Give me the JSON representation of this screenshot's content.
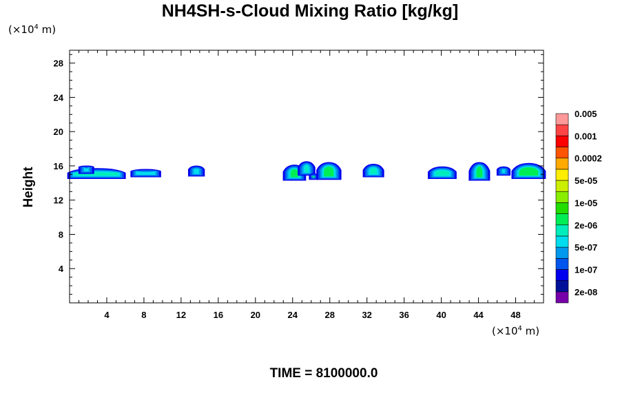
{
  "chart_data": {
    "type": "heatmap",
    "title": "NH4SH-s-Cloud Mixing Ratio [kg/kg]",
    "ylabel": "Height",
    "y_unit": {
      "prefix": "(×10",
      "exp": "4",
      "suffix": " m)"
    },
    "x_unit": {
      "prefix": "(×10",
      "exp": "4",
      "suffix": " m)"
    },
    "footer": "TIME = 8100000.0",
    "xlim": [
      0,
      51
    ],
    "ylim": [
      0,
      29.5
    ],
    "x_ticks": [
      4,
      8,
      12,
      16,
      20,
      24,
      28,
      32,
      36,
      40,
      44,
      48
    ],
    "y_ticks": [
      4,
      8,
      12,
      16,
      20,
      24,
      28
    ],
    "colorbar": {
      "colors": [
        "#7700aa",
        "#001199",
        "#0000ee",
        "#0055ee",
        "#0099ee",
        "#00ddee",
        "#00eebb",
        "#00ee55",
        "#22dd00",
        "#88ee00",
        "#ccee00",
        "#ffee00",
        "#ffaa00",
        "#ff5500",
        "#ff0000",
        "#ff4444",
        "#ff9999"
      ],
      "labels": [
        "2e-08",
        "1e-07",
        "5e-07",
        "2e-06",
        "1e-05",
        "5e-05",
        "0.0002",
        "0.001",
        "0.005"
      ]
    },
    "cloud_patches": [
      {
        "x0": 0.0,
        "x1": 5.8,
        "y0": 14.6,
        "y1": 15.2,
        "top": 15.6,
        "level": 6
      },
      {
        "x0": 1.2,
        "x1": 2.4,
        "y0": 15.2,
        "y1": 15.9,
        "top": 15.9,
        "level": 5
      },
      {
        "x0": 6.8,
        "x1": 9.6,
        "y0": 14.8,
        "y1": 15.4,
        "top": 15.5,
        "level": 5
      },
      {
        "x0": 13.0,
        "x1": 14.3,
        "y0": 14.9,
        "y1": 15.6,
        "top": 15.9,
        "level": 5
      },
      {
        "x0": 23.2,
        "x1": 25.2,
        "y0": 14.4,
        "y1": 15.3,
        "top": 16.0,
        "level": 7
      },
      {
        "x0": 24.8,
        "x1": 26.2,
        "y0": 15.0,
        "y1": 15.8,
        "top": 16.4,
        "level": 6
      },
      {
        "x0": 26.0,
        "x1": 26.5,
        "y0": 14.5,
        "y1": 14.9,
        "top": 15.0,
        "level": 7
      },
      {
        "x0": 26.8,
        "x1": 29.0,
        "y0": 14.5,
        "y1": 15.5,
        "top": 16.3,
        "level": 7
      },
      {
        "x0": 31.8,
        "x1": 33.6,
        "y0": 14.8,
        "y1": 15.5,
        "top": 16.1,
        "level": 6
      },
      {
        "x0": 38.8,
        "x1": 41.4,
        "y0": 14.6,
        "y1": 15.3,
        "top": 15.8,
        "level": 6
      },
      {
        "x0": 43.2,
        "x1": 45.0,
        "y0": 14.4,
        "y1": 15.4,
        "top": 16.3,
        "level": 7
      },
      {
        "x0": 46.2,
        "x1": 47.2,
        "y0": 15.0,
        "y1": 15.6,
        "top": 15.8,
        "level": 5
      },
      {
        "x0": 47.8,
        "x1": 51.0,
        "y0": 14.6,
        "y1": 15.4,
        "top": 16.2,
        "level": 7
      }
    ]
  }
}
